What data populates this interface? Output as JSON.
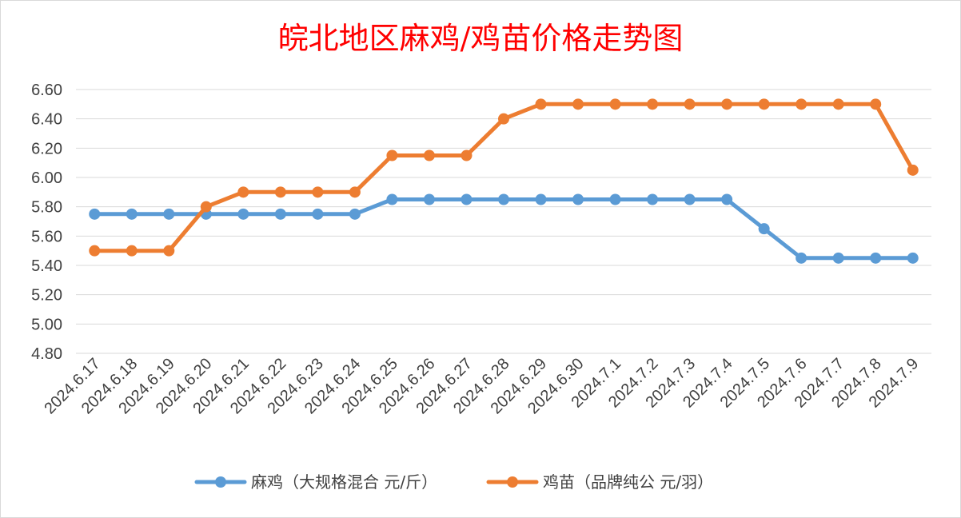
{
  "chart_data": {
    "type": "line",
    "title": "皖北地区麻鸡/鸡苗价格走势图",
    "xlabel": "",
    "ylabel": "",
    "categories": [
      "2024.6.17",
      "2024.6.18",
      "2024.6.19",
      "2024.6.20",
      "2024.6.21",
      "2024.6.22",
      "2024.6.23",
      "2024.6.24",
      "2024.6.25",
      "2024.6.26",
      "2024.6.27",
      "2024.6.28",
      "2024.6.29",
      "2024.6.30",
      "2024.7.1",
      "2024.7.2",
      "2024.7.3",
      "2024.7.4",
      "2024.7.5",
      "2024.7.6",
      "2024.7.7",
      "2024.7.8",
      "2024.7.9"
    ],
    "y_ticks": [
      "4.80",
      "5.00",
      "5.20",
      "5.40",
      "5.60",
      "5.80",
      "6.00",
      "6.20",
      "6.40",
      "6.60"
    ],
    "ylim": [
      4.8,
      6.6
    ],
    "grid": true,
    "legend_position": "bottom",
    "series": [
      {
        "name": "麻鸡（大规格混合 元/斤）",
        "color": "#5b9bd5",
        "values": [
          5.75,
          5.75,
          5.75,
          5.75,
          5.75,
          5.75,
          5.75,
          5.75,
          5.85,
          5.85,
          5.85,
          5.85,
          5.85,
          5.85,
          5.85,
          5.85,
          5.85,
          5.85,
          5.65,
          5.45,
          5.45,
          5.45,
          5.45
        ]
      },
      {
        "name": "鸡苗（品牌纯公 元/羽）",
        "color": "#ed7d31",
        "values": [
          5.5,
          5.5,
          5.5,
          5.8,
          5.9,
          5.9,
          5.9,
          5.9,
          6.15,
          6.15,
          6.15,
          6.4,
          6.5,
          6.5,
          6.5,
          6.5,
          6.5,
          6.5,
          6.5,
          6.5,
          6.5,
          6.5,
          6.05
        ]
      }
    ]
  }
}
